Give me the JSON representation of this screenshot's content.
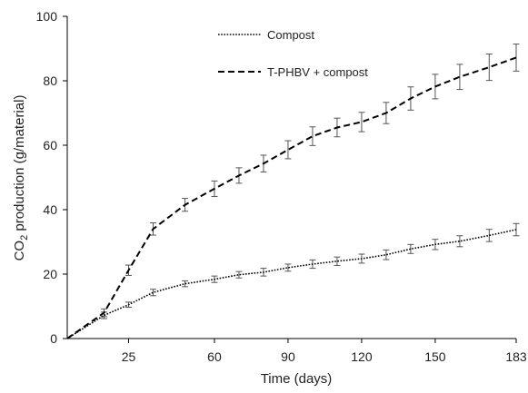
{
  "chart_data": {
    "type": "line",
    "xlabel": "Time (days)",
    "ylabel": {
      "prefix": "CO",
      "subscript": "2",
      "suffix": " production (g/material)"
    },
    "xlim": [
      0,
      183
    ],
    "ylim": [
      0,
      100
    ],
    "xticks": [
      25,
      60,
      90,
      120,
      150,
      183
    ],
    "yticks": [
      0,
      20,
      40,
      60,
      80,
      100
    ],
    "grid": false,
    "legend_position": "top-center",
    "series": [
      {
        "name": "Compost",
        "style": "dotted",
        "color": "#000000",
        "x": [
          0,
          15,
          25,
          35,
          48,
          60,
          70,
          80,
          90,
          100,
          110,
          120,
          130,
          140,
          150,
          160,
          172,
          183
        ],
        "y": [
          0,
          7.2,
          10.5,
          14.3,
          17.0,
          18.4,
          19.8,
          20.6,
          22.0,
          23.1,
          24.0,
          24.8,
          26.0,
          27.8,
          29.2,
          30.2,
          32.0,
          33.8
        ],
        "err": [
          0.8,
          1.0,
          0.8,
          1.0,
          0.9,
          1.0,
          1.0,
          1.2,
          1.1,
          1.3,
          1.3,
          1.4,
          1.5,
          1.4,
          1.6,
          1.7,
          1.9,
          1.9
        ]
      },
      {
        "name": "T-PHBV + compost",
        "style": "dashed",
        "color": "#000000",
        "x": [
          0,
          15,
          25,
          35,
          48,
          60,
          70,
          80,
          90,
          100,
          110,
          120,
          130,
          140,
          150,
          160,
          172,
          183
        ],
        "y": [
          0,
          8.0,
          21.2,
          34.0,
          41.5,
          46.5,
          50.6,
          54.3,
          58.6,
          62.8,
          65.5,
          67.2,
          70.0,
          74.5,
          78.2,
          81.2,
          84.2,
          87.2
        ],
        "err": [
          0.8,
          1.2,
          1.6,
          1.9,
          2.0,
          2.4,
          2.4,
          2.6,
          2.8,
          2.9,
          2.9,
          3.0,
          3.3,
          3.6,
          3.8,
          3.9,
          4.1,
          4.2
        ]
      }
    ]
  }
}
